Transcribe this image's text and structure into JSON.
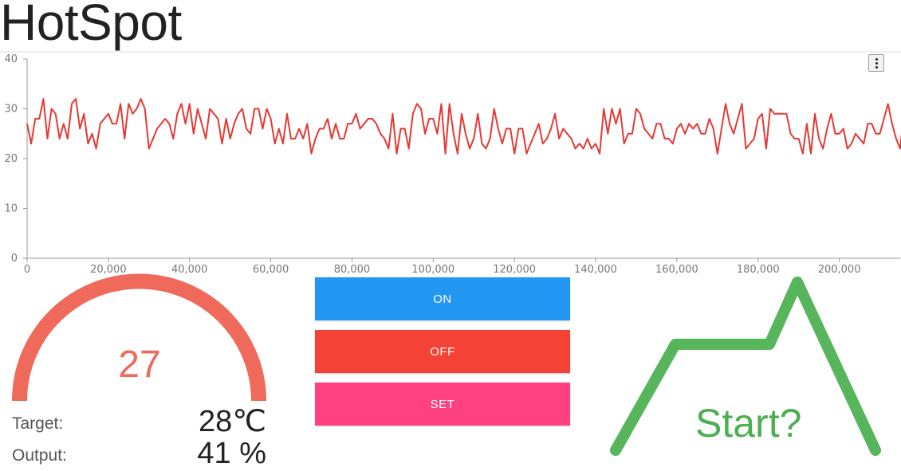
{
  "app": {
    "title": "HotSpot"
  },
  "chart_data": {
    "type": "line",
    "title": "",
    "xlabel": "",
    "ylabel": "",
    "xlim": [
      0,
      215000
    ],
    "ylim": [
      0,
      40
    ],
    "grid": false,
    "x_ticks": [
      0,
      20000,
      40000,
      60000,
      80000,
      100000,
      120000,
      140000,
      160000,
      180000,
      200000
    ],
    "x_tick_labels": [
      "0",
      "20,000",
      "40,000",
      "60,000",
      "80,000",
      "100,000",
      "120,000",
      "140,000",
      "160,000",
      "180,000",
      "200,000"
    ],
    "y_ticks": [
      0,
      10,
      20,
      30,
      40
    ],
    "y_tick_labels": [
      "0",
      "10",
      "20",
      "30",
      "40"
    ],
    "series": [
      {
        "color": "#e53935",
        "x_start": 0,
        "x_step": 1000,
        "values": [
          27,
          23,
          28,
          28,
          32,
          24,
          30,
          29,
          24,
          27,
          24,
          31,
          32,
          26,
          29,
          23,
          25,
          22,
          27,
          28,
          29,
          27,
          27,
          31,
          24,
          31,
          29,
          30,
          32,
          30,
          22,
          24,
          26,
          27,
          28,
          27,
          24,
          29,
          31,
          27,
          31,
          25,
          30,
          27,
          24,
          30,
          29,
          28,
          23,
          28,
          24,
          27,
          29,
          30,
          26,
          25,
          30,
          30,
          26,
          30,
          28,
          23,
          26,
          23,
          29,
          24,
          24,
          26,
          24,
          27,
          21,
          24,
          26,
          26,
          28,
          24,
          27,
          24,
          24,
          27,
          27,
          29,
          26,
          27,
          28,
          28,
          27,
          25,
          24,
          22,
          29,
          21,
          26,
          26,
          22,
          29,
          31,
          30,
          25,
          28,
          28,
          25,
          31,
          21,
          31,
          25,
          21,
          29,
          25,
          22,
          24,
          29,
          23,
          22,
          24,
          30,
          26,
          23,
          26,
          26,
          21,
          26,
          26,
          21,
          23,
          25,
          27,
          23,
          24,
          26,
          29,
          24,
          26,
          25,
          24,
          22,
          23,
          22,
          24,
          22,
          23,
          21,
          30,
          25,
          30,
          27,
          30,
          23,
          25,
          25,
          30,
          29,
          26,
          25,
          24,
          27,
          27,
          24,
          24,
          23,
          26,
          27,
          25,
          27,
          26,
          27,
          25,
          25,
          28,
          26,
          21,
          26,
          31,
          27,
          25,
          28,
          31,
          22,
          23,
          24,
          28,
          29,
          22,
          30,
          29,
          29,
          29,
          29,
          25,
          24,
          24,
          21,
          27,
          21,
          29,
          24,
          22,
          26,
          29,
          25,
          25,
          26,
          22,
          23,
          25,
          24,
          23,
          27,
          27,
          25,
          25,
          28,
          31,
          27,
          24,
          22,
          30,
          27,
          30
        ]
      }
    ]
  },
  "chart_menu": {
    "icon": "kebab-menu-icon"
  },
  "gauge": {
    "value": "27",
    "value_number": 27,
    "fill_fraction": 1.0,
    "color": "#ef6a5a",
    "track_color": "#e0e0e0"
  },
  "stats": {
    "target_label": "Target:",
    "target_value": "28℃",
    "output_label": "Output:",
    "output_value": "41 %"
  },
  "controls": {
    "on_label": "ON",
    "off_label": "OFF",
    "set_label": "SET",
    "on_color": "#2196f3",
    "off_color": "#f44336",
    "set_color": "#ff4081"
  },
  "profile": {
    "label": "Start?",
    "color": "#4caf50"
  }
}
